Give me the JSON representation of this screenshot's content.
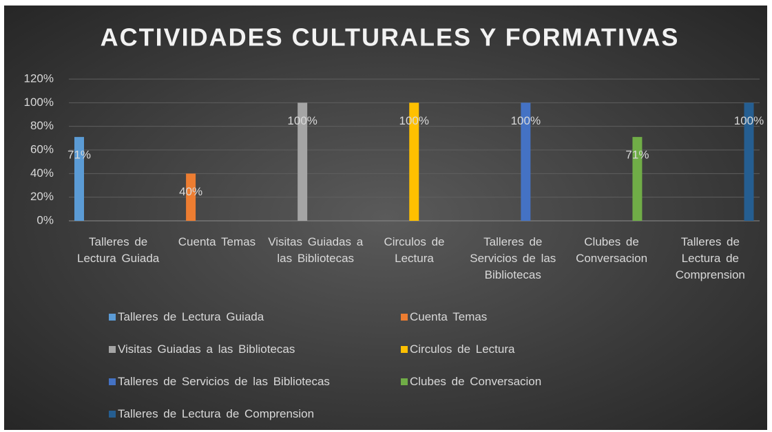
{
  "chart_data": {
    "type": "bar",
    "title": "ACTIVIDADES  CULTURALES Y  FORMATIVAS",
    "categories": [
      "Talleres de Lectura Guiada",
      "Cuenta Temas",
      "Visitas Guiadas a las Bibliotecas",
      "Circulos de Lectura",
      "Talleres de Servicios de las Bibliotecas",
      "Clubes de Conversacion",
      "Talleres de Lectura de Comprension"
    ],
    "series": [
      {
        "name": "Talleres de  Lectura Guiada",
        "color": "#5b9bd5",
        "values": [
          71,
          null,
          null,
          null,
          null,
          null,
          null
        ],
        "value_labels": [
          "71%",
          null,
          null,
          null,
          null,
          null,
          null
        ]
      },
      {
        "name": "Cuenta  Temas",
        "color": "#ed7d31",
        "values": [
          null,
          40,
          null,
          null,
          null,
          null,
          null
        ],
        "value_labels": [
          null,
          "40%",
          null,
          null,
          null,
          null,
          null
        ]
      },
      {
        "name": "Visitas  Guiadas  a  las  Bibliotecas",
        "color": "#a5a5a5",
        "values": [
          null,
          null,
          100,
          null,
          null,
          null,
          null
        ],
        "value_labels": [
          null,
          null,
          "100%",
          null,
          null,
          null,
          null
        ]
      },
      {
        "name": "Circulos  de  Lectura",
        "color": "#ffc000",
        "values": [
          null,
          null,
          null,
          100,
          null,
          null,
          null
        ],
        "value_labels": [
          null,
          null,
          null,
          "100%",
          null,
          null,
          null
        ]
      },
      {
        "name": "Talleres  de  Servicios  de  las  Bibliotecas",
        "color": "#4472c4",
        "values": [
          null,
          null,
          null,
          null,
          100,
          null,
          null
        ],
        "value_labels": [
          null,
          null,
          null,
          null,
          "100%",
          null,
          null
        ]
      },
      {
        "name": "Clubes  de  Conversacion",
        "color": "#70ad47",
        "values": [
          null,
          null,
          null,
          null,
          null,
          71,
          null
        ],
        "value_labels": [
          null,
          null,
          null,
          null,
          null,
          "71%",
          null
        ]
      },
      {
        "name": "Talleres  de  Lectura  de  Comprension",
        "color": "#255e91",
        "values": [
          null,
          null,
          null,
          null,
          null,
          null,
          100
        ],
        "value_labels": [
          null,
          null,
          null,
          null,
          null,
          null,
          "100%"
        ]
      }
    ],
    "ylim": [
      0,
      120
    ],
    "yticks": [
      {
        "value": 0,
        "label": "0%"
      },
      {
        "value": 20,
        "label": "20%"
      },
      {
        "value": 40,
        "label": "40%"
      },
      {
        "value": 60,
        "label": "60%"
      },
      {
        "value": 80,
        "label": "80%"
      },
      {
        "value": 100,
        "label": "100%"
      },
      {
        "value": 120,
        "label": "120%"
      }
    ],
    "grid": true
  }
}
